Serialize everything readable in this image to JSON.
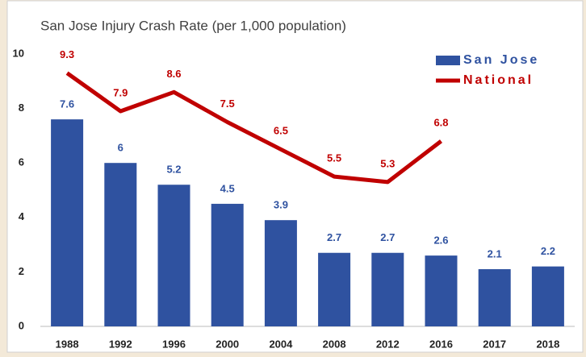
{
  "chart_data": {
    "type": "bar",
    "title": "San Jose Injury Crash Rate (per 1,000 population)",
    "categories": [
      "1988",
      "1992",
      "1996",
      "2000",
      "2004",
      "2008",
      "2012",
      "2016",
      "2017",
      "2018"
    ],
    "series": [
      {
        "name": "San Jose",
        "type": "bar",
        "color": "#2f52a0",
        "values": [
          7.6,
          6,
          5.2,
          4.5,
          3.9,
          2.7,
          2.7,
          2.6,
          2.1,
          2.2
        ]
      },
      {
        "name": "National",
        "type": "line",
        "color": "#c00000",
        "values": [
          9.3,
          7.9,
          8.6,
          7.5,
          6.5,
          5.5,
          5.3,
          6.8,
          null,
          null
        ]
      }
    ],
    "ylim": [
      0,
      10
    ],
    "yticks": [
      0,
      2,
      4,
      6,
      8,
      10
    ],
    "grid": false,
    "legend": "top-right"
  }
}
